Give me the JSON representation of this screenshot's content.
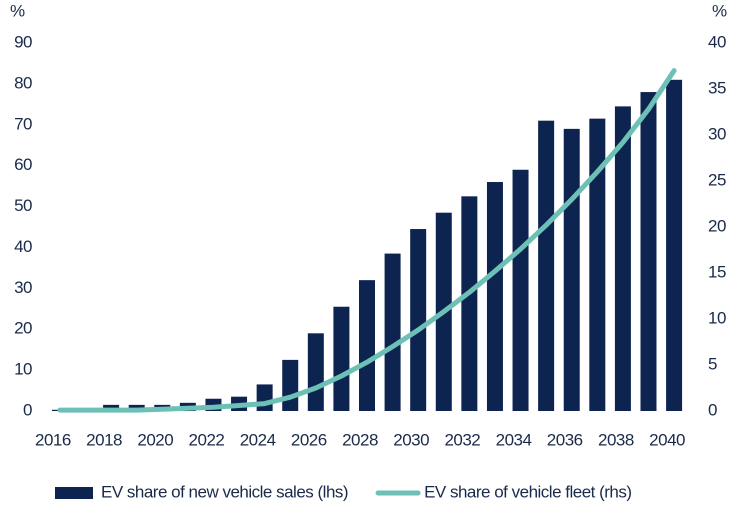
{
  "chart_data": {
    "type": "bar_line",
    "ylabel": "%",
    "y2label": "%",
    "x": [
      2016,
      2017,
      2018,
      2019,
      2020,
      2021,
      2022,
      2023,
      2024,
      2025,
      2026,
      2027,
      2028,
      2029,
      2030,
      2031,
      2032,
      2033,
      2034,
      2035,
      2036,
      2037,
      2038,
      2039,
      2040
    ],
    "xticks": [
      2016,
      2018,
      2020,
      2022,
      2024,
      2026,
      2028,
      2030,
      2032,
      2034,
      2036,
      2038,
      2040
    ],
    "xlim": [
      2015.3,
      2040.7
    ],
    "ylim": [
      0,
      90
    ],
    "yticks": [
      0,
      10,
      20,
      30,
      40,
      50,
      60,
      70,
      80,
      90
    ],
    "y2lim": [
      0,
      40
    ],
    "y2ticks": [
      0,
      5,
      10,
      15,
      20,
      25,
      30,
      35,
      40
    ],
    "series": [
      {
        "name": "EV share of new vehicle sales (lhs)",
        "color": "#0d2451",
        "kind": "bar",
        "values": [
          0.3,
          0.5,
          1.5,
          1.5,
          1.5,
          2,
          3,
          3.5,
          6.5,
          12.5,
          19,
          25.5,
          32,
          38.5,
          44.5,
          48.5,
          52.5,
          56,
          59,
          71,
          69,
          71.5,
          74.5,
          78,
          81
        ]
      },
      {
        "name": "EV share of vehicle fleet (rhs)",
        "color": "#6cc0b5",
        "kind": "line",
        "axis": "y2",
        "values": [
          0.1,
          0.1,
          0.1,
          0.1,
          0.2,
          0.3,
          0.4,
          0.6,
          0.8,
          1.5,
          2.5,
          3.8,
          5.3,
          7,
          8.8,
          10.8,
          12.9,
          15.2,
          17.6,
          20.2,
          23,
          26,
          29.2,
          32.8,
          37
        ]
      }
    ]
  }
}
